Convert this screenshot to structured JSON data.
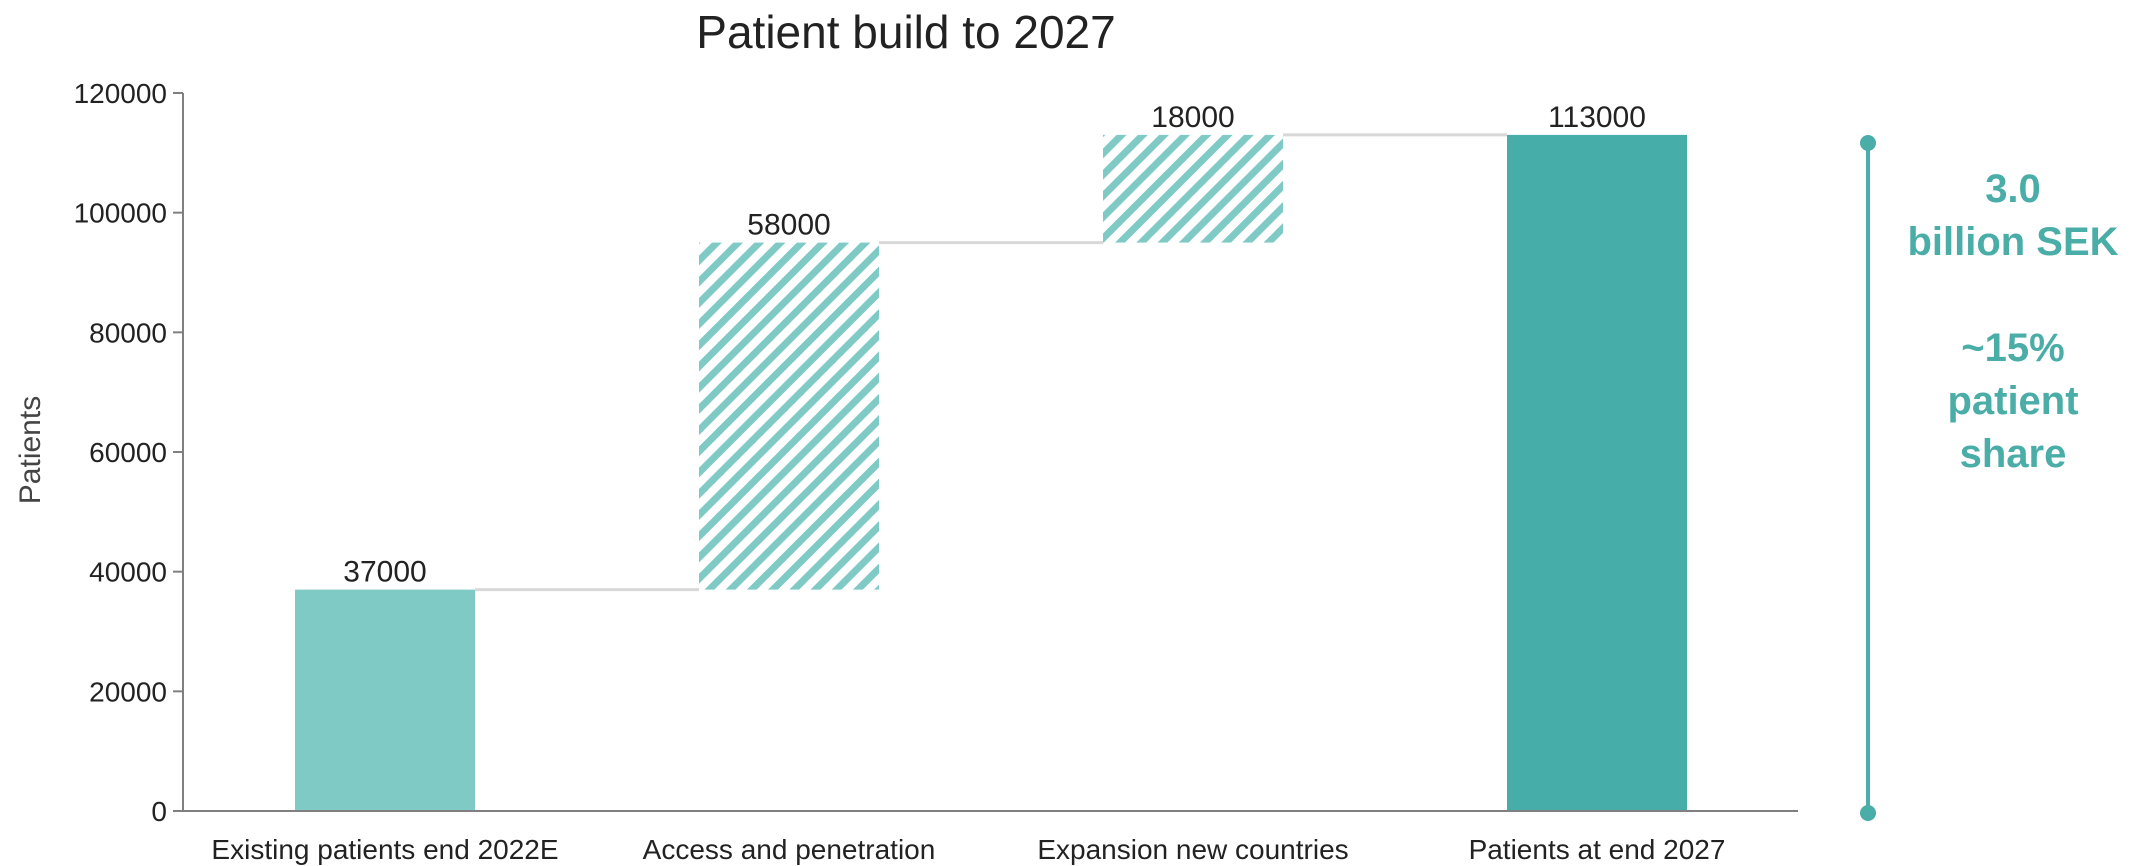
{
  "chart_data": {
    "type": "bar",
    "subtype": "waterfall",
    "title": "Patient build to 2027",
    "xlabel": "",
    "ylabel": "Patients",
    "ylim": [
      0,
      120000
    ],
    "yticks": [
      0,
      20000,
      40000,
      60000,
      80000,
      100000,
      120000
    ],
    "grid": false,
    "categories": [
      "Existing patients end 2022E",
      "Access and penetration",
      "Expansion new countries",
      "Patients at end 2027"
    ],
    "bars": [
      {
        "category": "Existing patients end 2022E",
        "start": 0,
        "end": 37000,
        "value": 37000,
        "kind": "base"
      },
      {
        "category": "Access and penetration",
        "start": 37000,
        "end": 95000,
        "value": 58000,
        "kind": "increment"
      },
      {
        "category": "Expansion new countries",
        "start": 95000,
        "end": 113000,
        "value": 18000,
        "kind": "increment"
      },
      {
        "category": "Patients at end 2027",
        "start": 0,
        "end": 113000,
        "value": 113000,
        "kind": "total"
      }
    ],
    "data_labels": [
      "37000",
      "58000",
      "18000",
      "113000"
    ],
    "colors": {
      "base": "#7FCAC5",
      "increment_stripe": "#7FCAC5",
      "total": "#47ADA8",
      "connector": "#D8D8D8",
      "axis": "#808080",
      "annotation": "#4AADA8"
    },
    "annotation": {
      "lines": [
        "3.0",
        "billion SEK",
        "",
        "~15%",
        "patient",
        "share"
      ]
    }
  }
}
